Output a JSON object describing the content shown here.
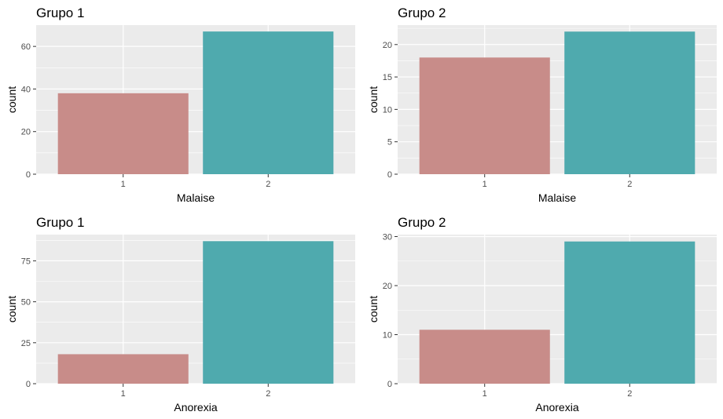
{
  "colors": {
    "bar_1": "#C88C89",
    "bar_2": "#4FAAAE",
    "panel_bg": "#EBEBEB",
    "grid": "#FFFFFF",
    "axis_text": "#4D4D4D"
  },
  "chart_data": [
    {
      "type": "bar",
      "title": "Grupo 1",
      "xlabel": "Malaise",
      "ylabel": "count",
      "categories": [
        "1",
        "2"
      ],
      "values": [
        38,
        67
      ],
      "ylim": [
        0,
        70
      ],
      "yticks": [
        0,
        20,
        40,
        60
      ],
      "ytick_labels": [
        "0",
        "20",
        "40",
        "60"
      ],
      "grid": true
    },
    {
      "type": "bar",
      "title": "Grupo 2",
      "xlabel": "Malaise",
      "ylabel": "count",
      "categories": [
        "1",
        "2"
      ],
      "values": [
        18,
        22
      ],
      "ylim": [
        0,
        23
      ],
      "yticks": [
        0,
        5,
        10,
        15,
        20
      ],
      "ytick_labels": [
        "0",
        "5",
        "10",
        "15",
        "20"
      ],
      "grid": true
    },
    {
      "type": "bar",
      "title": "Grupo 1",
      "xlabel": "Anorexia",
      "ylabel": "count",
      "categories": [
        "1",
        "2"
      ],
      "values": [
        18,
        87
      ],
      "ylim": [
        0,
        91
      ],
      "yticks": [
        0,
        25,
        50,
        75
      ],
      "ytick_labels": [
        "0",
        "25",
        "50",
        "75"
      ],
      "grid": true
    },
    {
      "type": "bar",
      "title": "Grupo 2",
      "xlabel": "Anorexia",
      "ylabel": "count",
      "categories": [
        "1",
        "2"
      ],
      "values": [
        11,
        29
      ],
      "ylim": [
        0,
        30.4
      ],
      "yticks": [
        0,
        10,
        20,
        30
      ],
      "ytick_labels": [
        "0",
        "10",
        "20",
        "30"
      ],
      "grid": true
    }
  ]
}
